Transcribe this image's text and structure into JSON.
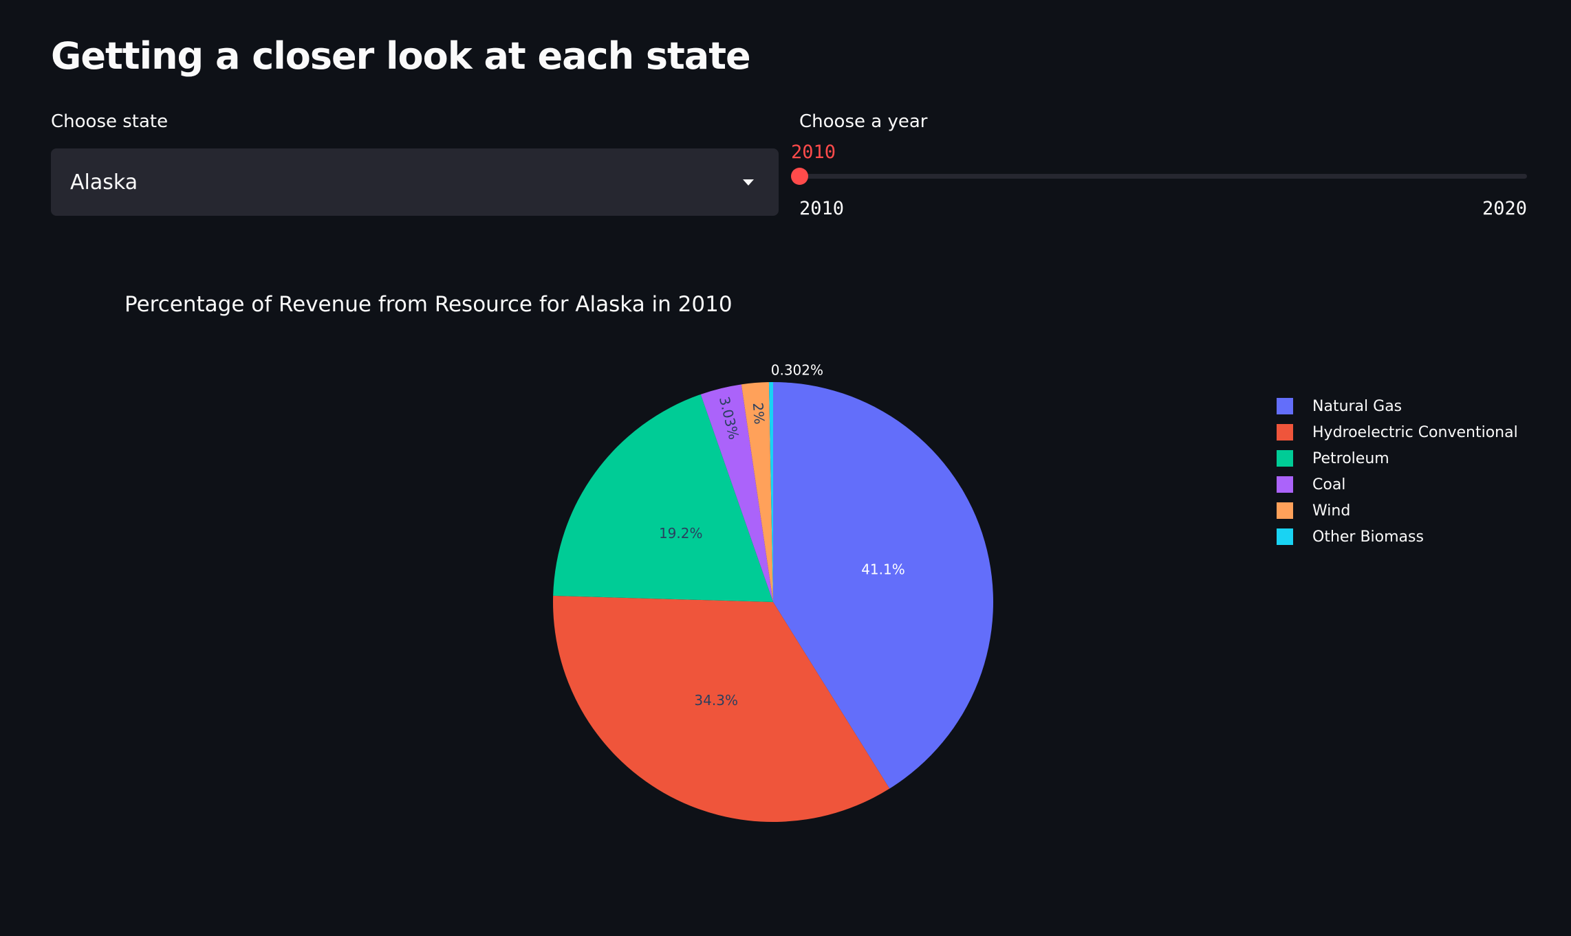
{
  "header": {
    "title": "Getting a closer look at each state"
  },
  "state_select": {
    "label": "Choose state",
    "value": "Alaska"
  },
  "year_slider": {
    "label": "Choose a year",
    "value": "2010",
    "min": "2010",
    "max": "2020",
    "fraction": 0
  },
  "chart_data": {
    "type": "pie",
    "title": "Percentage of Revenue from Resource for Alaska in 2010",
    "legend_position": "top-right",
    "slices": [
      {
        "label": "Natural Gas",
        "value": 41.1,
        "text": "41.1%",
        "color": "#636efa"
      },
      {
        "label": "Hydroelectric Conventional",
        "value": 34.3,
        "text": "34.3%",
        "color": "#ef553b"
      },
      {
        "label": "Petroleum",
        "value": 19.2,
        "text": "19.2%",
        "color": "#00cc96"
      },
      {
        "label": "Coal",
        "value": 3.03,
        "text": "3.03%",
        "color": "#ab63fa"
      },
      {
        "label": "Wind",
        "value": 2.0,
        "text": "2%",
        "color": "#ffa15a"
      },
      {
        "label": "Other Biomass",
        "value": 0.302,
        "text": "0.302%",
        "color": "#19d3f3"
      }
    ]
  }
}
